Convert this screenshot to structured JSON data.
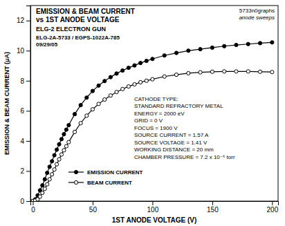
{
  "chart_data": {
    "type": "line",
    "title": [
      "EMISSION & BEAM CURRENT",
      "vs  1ST ANODE VOLTAGE"
    ],
    "subtitle": [
      "ELG-2 ELECTRON GUN",
      "ELG-2A-5733 /  EGPS-1022A-785",
      "09/29/05"
    ],
    "annotations": [
      "5733n0graphs",
      "anode sweeps",
      "CATHODE TYPE:",
      "STANDARD REFRACTORY METAL",
      "ENERGY = 2000 eV",
      "GRID = 0 V",
      "FOCUS = 1900 V",
      "SOURCE CURRENT = 1.57 A",
      "SOURCE VOLTAGE = 1.41 V",
      "WORKING DISTANCE = 20 mm",
      "CHAMBER PRESSURE = 7.2 x 10⁻⁶ torr"
    ],
    "xlabel": "1ST ANODE VOLTAGE (V)",
    "ylabel": "EMISSION & BEAM CURRENT (μA)",
    "xlim": [
      -2,
      205
    ],
    "ylim": [
      0,
      13
    ],
    "xticks": [
      0,
      50,
      100,
      150,
      200
    ],
    "yticks": [
      0,
      2,
      4,
      6,
      8,
      10,
      12
    ],
    "grid": false,
    "legend": "lower left",
    "x": [
      0,
      2,
      4,
      6,
      8,
      10,
      12,
      14,
      16,
      18,
      20,
      22,
      24,
      26,
      28,
      30,
      35,
      40,
      45,
      50,
      55,
      60,
      65,
      70,
      75,
      80,
      85,
      90,
      95,
      100,
      110,
      120,
      130,
      140,
      150,
      160,
      170,
      180,
      190,
      200
    ],
    "series": [
      {
        "name": "EMISSION CURRENT",
        "color": "#000000",
        "marker": "circle",
        "values": [
          0,
          0.12,
          0.38,
          0.72,
          1.05,
          1.45,
          1.88,
          2.28,
          2.65,
          3.05,
          3.42,
          3.78,
          4.12,
          4.45,
          4.75,
          5.05,
          5.78,
          6.38,
          6.88,
          7.32,
          7.68,
          7.98,
          8.24,
          8.48,
          8.68,
          8.86,
          9.02,
          9.18,
          9.32,
          9.45,
          9.68,
          9.85,
          10.0,
          10.1,
          10.2,
          10.3,
          10.38,
          10.44,
          10.5,
          10.55
        ]
      },
      {
        "name": "BEAM CURRENT",
        "color": "#000000",
        "marker": "circle-open",
        "values": [
          0,
          0.04,
          0.12,
          0.3,
          0.55,
          0.82,
          1.12,
          1.45,
          1.78,
          2.1,
          2.45,
          2.78,
          3.1,
          3.38,
          3.65,
          3.92,
          4.6,
          5.18,
          5.68,
          6.1,
          6.46,
          6.75,
          7.02,
          7.25,
          7.45,
          7.62,
          7.76,
          7.9,
          8.0,
          8.1,
          8.28,
          8.4,
          8.5,
          8.56,
          8.6,
          8.62,
          8.62,
          8.62,
          8.6,
          8.58
        ]
      }
    ]
  }
}
